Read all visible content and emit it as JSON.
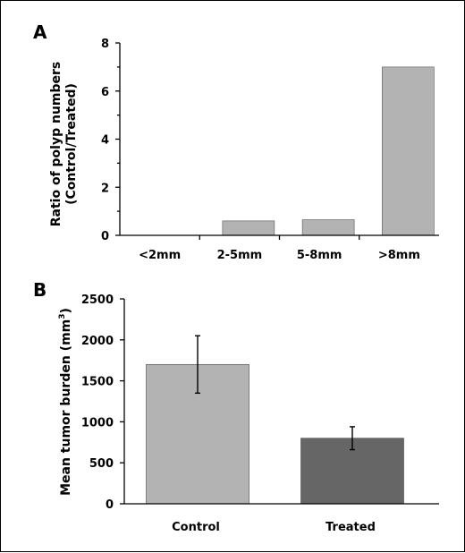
{
  "chart_data": [
    {
      "type": "bar",
      "panel": "A",
      "categories": [
        "<2mm",
        "2-5mm",
        "5-8mm",
        ">8mm"
      ],
      "values": [
        0,
        0.6,
        0.65,
        7.0
      ],
      "ylabel_line1": "Ratio of polyp numbers",
      "ylabel_line2": "(Control/Treated)",
      "ylim": [
        0,
        8
      ],
      "yticks": [
        "0",
        "2",
        "4",
        "6",
        "8"
      ],
      "bar_color": "#b3b3b3",
      "grid": false
    },
    {
      "type": "bar",
      "panel": "B",
      "categories": [
        "Control",
        "Treated"
      ],
      "values": [
        1700,
        800
      ],
      "error": [
        350,
        140
      ],
      "ylabel": "Mean tumor burden (mm",
      "ylabel_sup": "3",
      "ylabel_close": ")",
      "ylim": [
        0,
        2500
      ],
      "yticks": [
        "0",
        "500",
        "1000",
        "1500",
        "2000",
        "2500"
      ],
      "bar_colors": [
        "#b3b3b3",
        "#666666"
      ],
      "grid": false
    }
  ]
}
